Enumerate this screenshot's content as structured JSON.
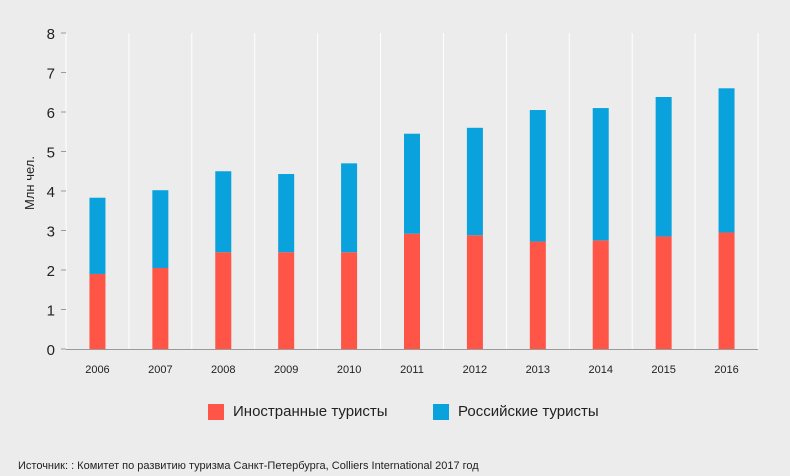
{
  "chart_data": {
    "type": "bar",
    "stacked": true,
    "ylabel": "Млн чел.",
    "ylim": [
      0,
      8
    ],
    "yticks": [
      0,
      1,
      2,
      3,
      4,
      5,
      6,
      7,
      8
    ],
    "grid": "vertical",
    "categories": [
      "2006",
      "2007",
      "2008",
      "2009",
      "2010",
      "2011",
      "2012",
      "2013",
      "2014",
      "2015",
      "2016"
    ],
    "series": [
      {
        "name": "Иностранные туристы",
        "color": "#ff5547",
        "values": [
          1.9,
          2.05,
          2.45,
          2.45,
          2.45,
          2.92,
          2.88,
          2.72,
          2.75,
          2.85,
          2.95
        ]
      },
      {
        "name": "Российские туристы",
        "color": "#09a2dd",
        "values": [
          1.93,
          1.97,
          2.05,
          1.98,
          2.25,
          2.53,
          2.72,
          3.33,
          3.35,
          3.53,
          3.65
        ]
      }
    ],
    "legend_position": "bottom"
  },
  "source": "Источник: : Комитет по развитию туризма Санкт-Петербурга, Colliers International 2017 год"
}
